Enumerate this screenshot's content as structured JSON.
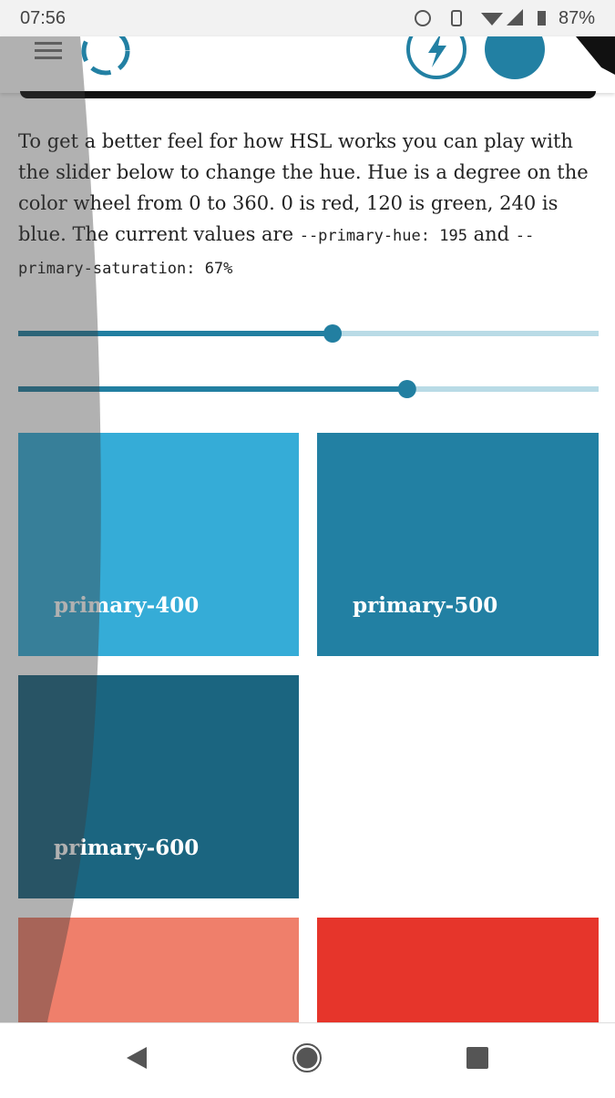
{
  "status_bar": {
    "time": "07:56",
    "battery": "87%"
  },
  "intro": {
    "text": "To get a better feel for how HSL works you can play with the slider below to change the hue. Hue is a degree on the color wheel from 0 to 360. 0 is red, 120 is green, 240 is blue. The current values are ",
    "code_hue": "--primary-hue: 195",
    "joiner": " and ",
    "code_saturation": "--primary-saturation: 67%"
  },
  "sliders": [
    {
      "value": 195,
      "min": 0,
      "max": 360
    },
    {
      "value": 67,
      "min": 0,
      "max": 100
    }
  ],
  "swatches": [
    "primary-400",
    "primary-500",
    "primary-600"
  ]
}
